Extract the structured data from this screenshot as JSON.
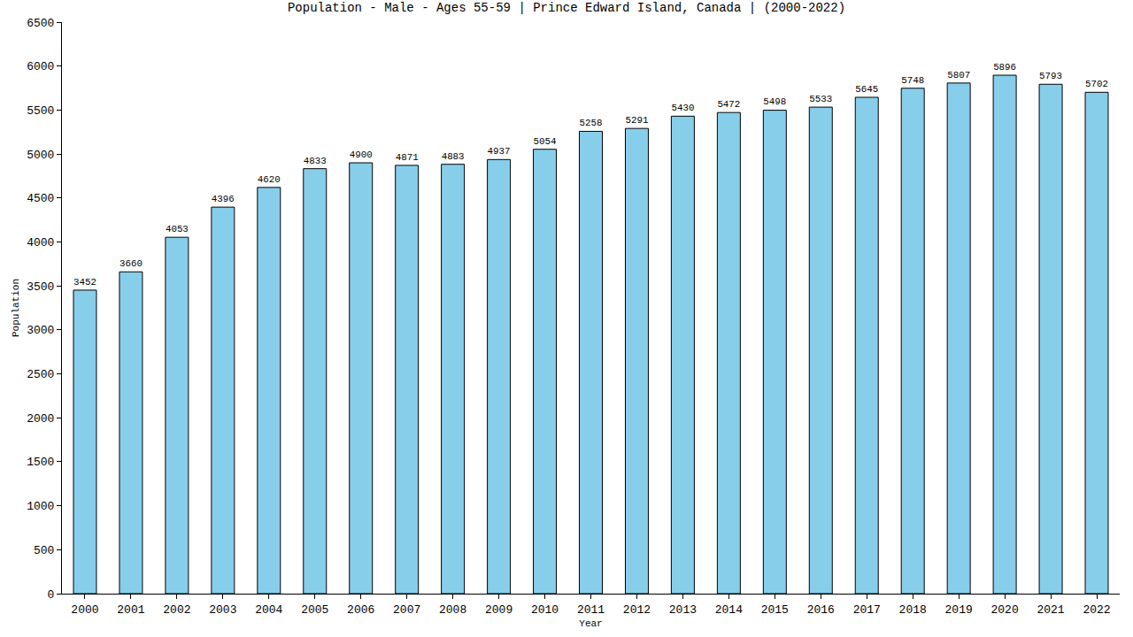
{
  "chart_data": {
    "type": "bar",
    "title": "Population - Male - Ages 55-59 | Prince Edward Island, Canada | (2000-2022)",
    "x_label": "Year",
    "y_label": "Population",
    "categories": [
      "2000",
      "2001",
      "2002",
      "2003",
      "2004",
      "2005",
      "2006",
      "2007",
      "2008",
      "2009",
      "2010",
      "2011",
      "2012",
      "2013",
      "2014",
      "2015",
      "2016",
      "2017",
      "2018",
      "2019",
      "2020",
      "2021",
      "2022"
    ],
    "values": [
      3452,
      3660,
      4053,
      4396,
      4620,
      4833,
      4900,
      4871,
      4883,
      4937,
      5054,
      5258,
      5291,
      5430,
      5472,
      5498,
      5533,
      5645,
      5748,
      5807,
      5896,
      5793,
      5702
    ],
    "color": "#87ceeb",
    "ylim": [
      0,
      6500
    ],
    "yticks": [
      0,
      500,
      1000,
      1500,
      2000,
      2500,
      3000,
      3500,
      4000,
      4500,
      5000,
      5500,
      6000,
      6500
    ],
    "grid": false,
    "data_labels": true
  }
}
